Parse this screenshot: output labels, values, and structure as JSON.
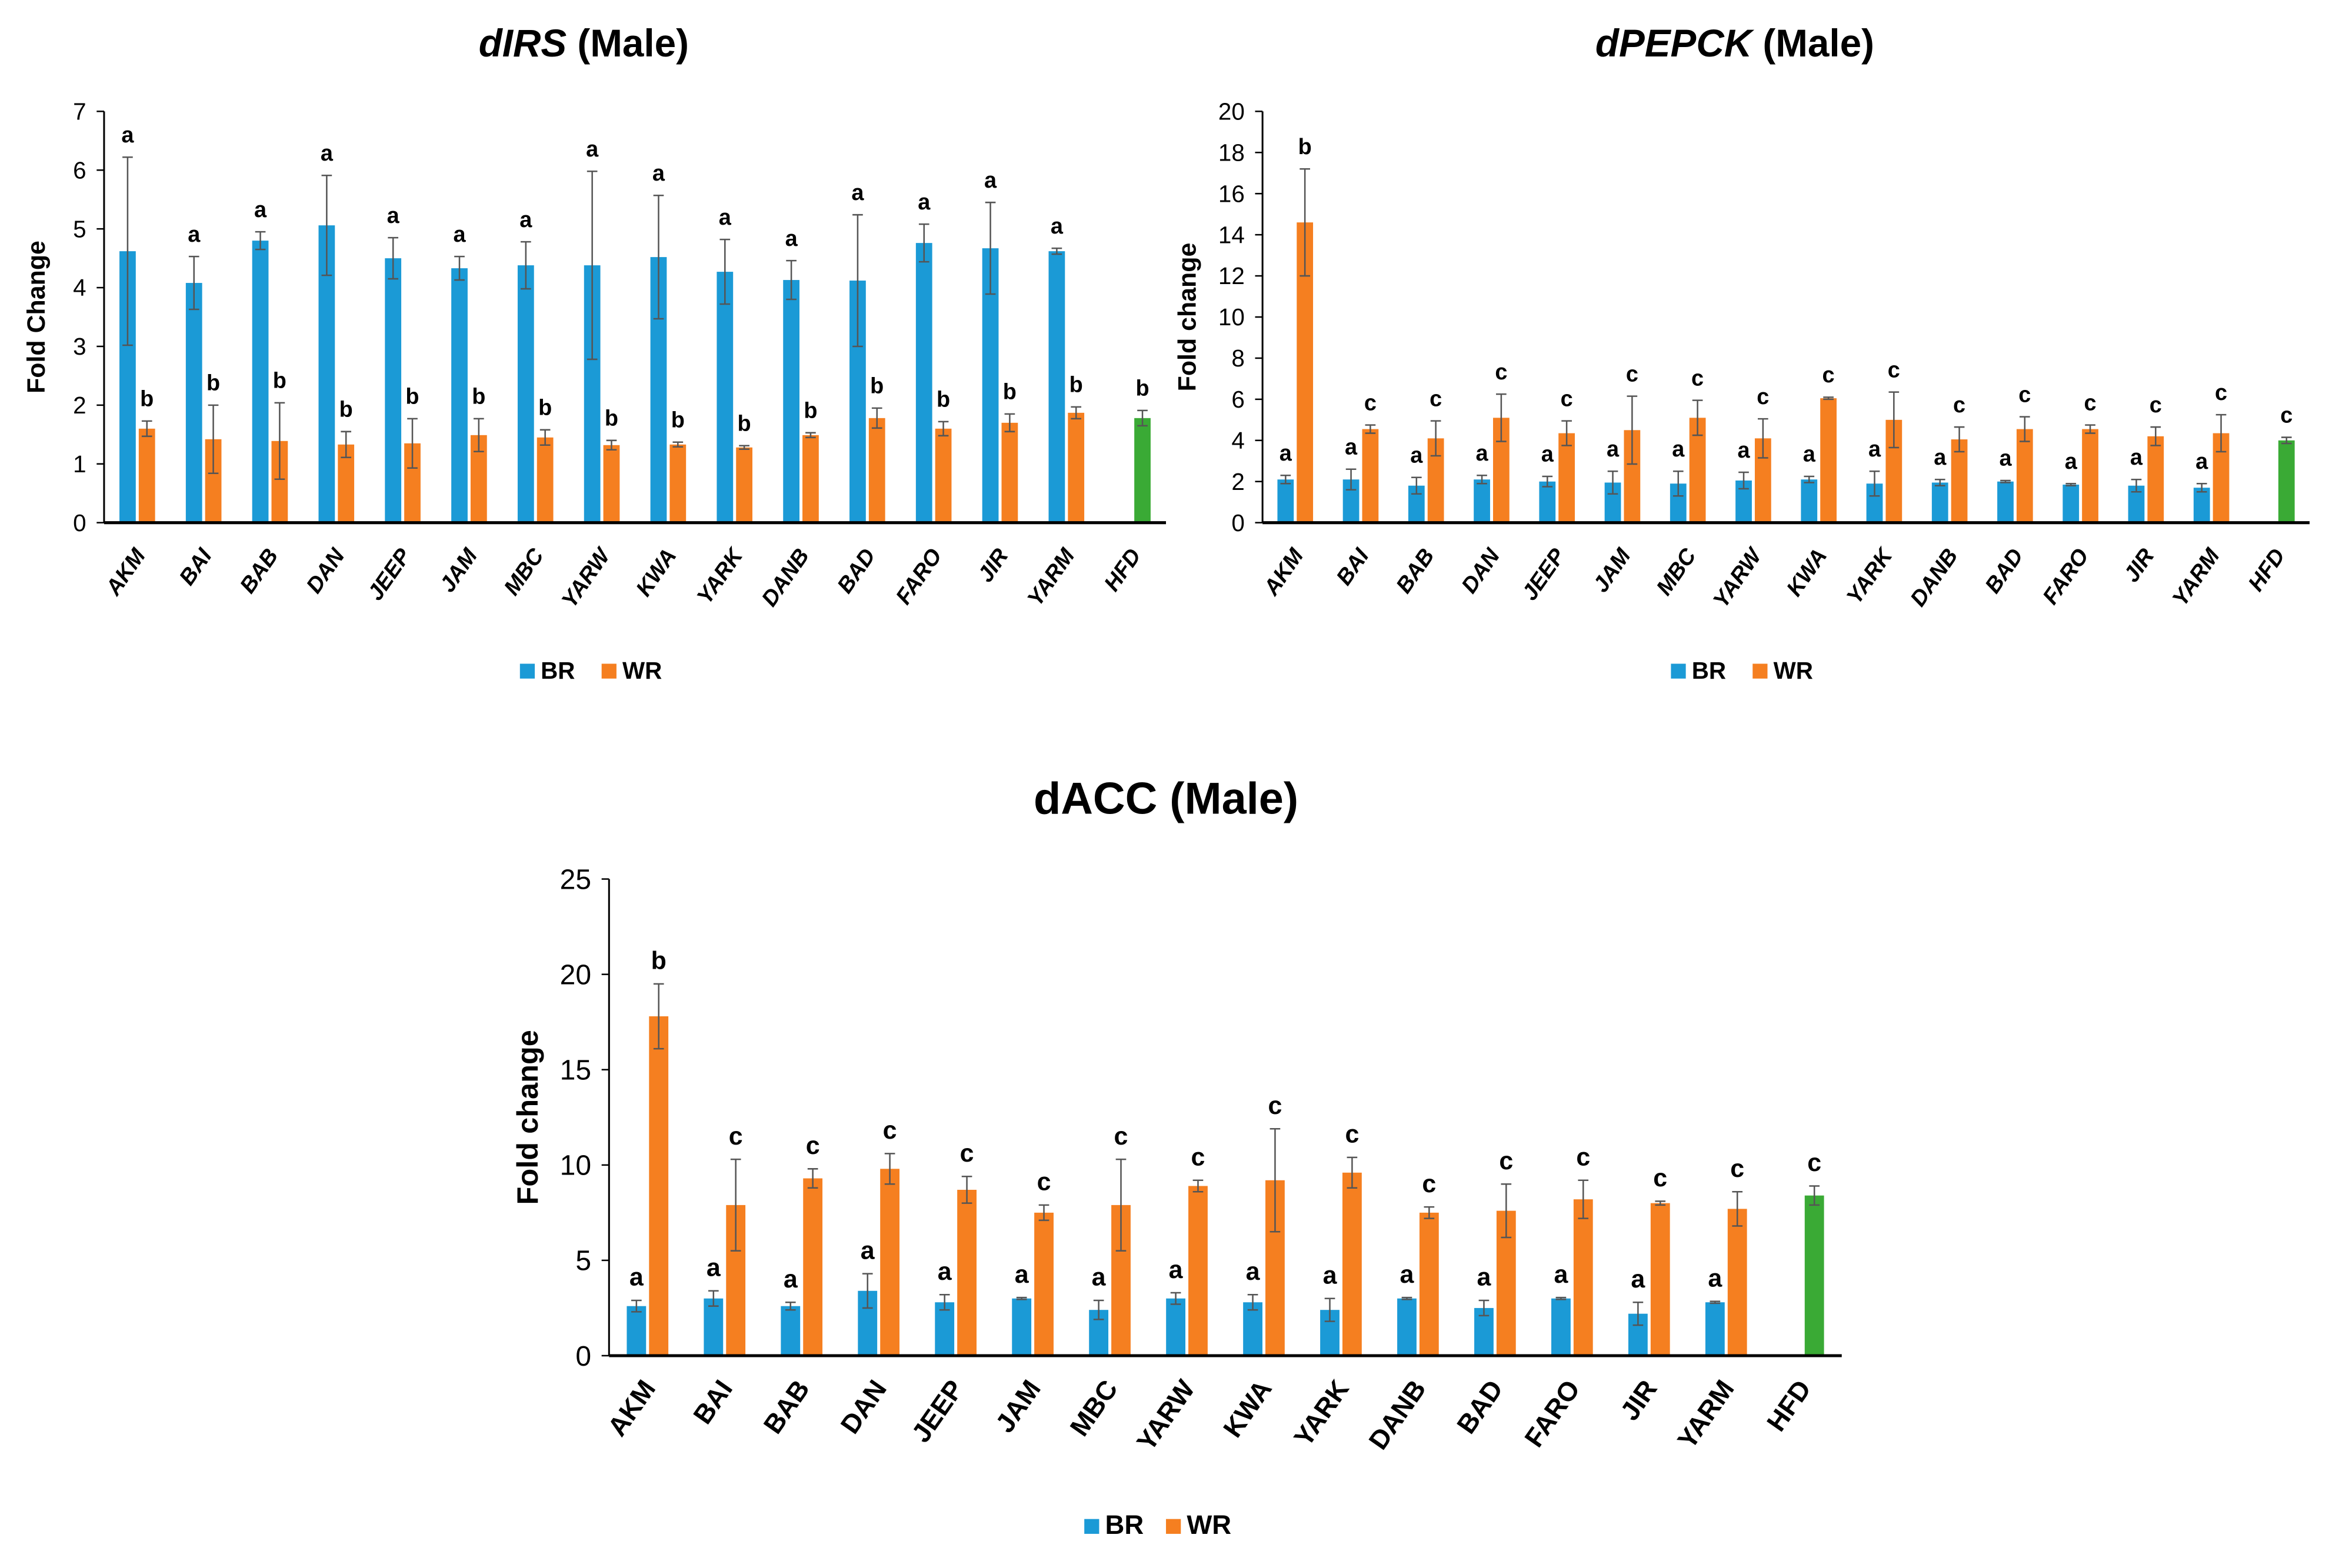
{
  "colors": {
    "BR": "#1b9ad6",
    "WR": "#f57f20",
    "HFD": "#3aaa35",
    "axis": "#000000",
    "error": "#555555"
  },
  "legend": [
    {
      "key": "BR",
      "label": "BR"
    },
    {
      "key": "WR",
      "label": "WR"
    }
  ],
  "chart_data": [
    {
      "type": "bar",
      "title_italic": "dIRS",
      "title_rest": " (Male)",
      "title_style": "italic",
      "ylabel": "Fold Change",
      "xlabel": "",
      "ylim": [
        0,
        7
      ],
      "yticks": [
        0,
        1,
        2,
        3,
        4,
        5,
        6,
        7
      ],
      "categories": [
        "AKM",
        "BAI",
        "BAB",
        "DAN",
        "JEEP",
        "JAM",
        "MBC",
        "YARW",
        "KWA",
        "YARK",
        "DANB",
        "BAD",
        "FARO",
        "JIR",
        "YARM",
        "HFD"
      ],
      "series": [
        {
          "name": "BR",
          "values": [
            4.62,
            4.08,
            4.8,
            5.06,
            4.5,
            4.33,
            4.38,
            4.38,
            4.52,
            4.27,
            4.13,
            4.12,
            4.76,
            4.67,
            4.62,
            null
          ],
          "errors": [
            1.6,
            0.45,
            0.15,
            0.85,
            0.35,
            0.2,
            0.4,
            1.6,
            1.05,
            0.55,
            0.33,
            1.12,
            0.32,
            0.78,
            0.05,
            null
          ],
          "letters": [
            "a",
            "a",
            "a",
            "a",
            "a",
            "a",
            "a",
            "a",
            "a",
            "a",
            "a",
            "a",
            "a",
            "a",
            "a",
            null
          ]
        },
        {
          "name": "WR",
          "values": [
            1.6,
            1.42,
            1.39,
            1.33,
            1.35,
            1.49,
            1.45,
            1.32,
            1.33,
            1.28,
            1.49,
            1.78,
            1.6,
            1.7,
            1.87,
            null
          ],
          "errors": [
            0.13,
            0.58,
            0.65,
            0.22,
            0.42,
            0.28,
            0.13,
            0.08,
            0.04,
            0.03,
            0.04,
            0.17,
            0.12,
            0.15,
            0.1,
            null
          ],
          "letters": [
            "b",
            "b",
            "b",
            "b",
            "b",
            "b",
            "b",
            "b",
            "b",
            "b",
            "b",
            "b",
            "b",
            "b",
            "b",
            null
          ]
        },
        {
          "name": "HFD",
          "values": [
            null,
            null,
            null,
            null,
            null,
            null,
            null,
            null,
            null,
            null,
            null,
            null,
            null,
            null,
            null,
            1.78
          ],
          "errors": [
            null,
            null,
            null,
            null,
            null,
            null,
            null,
            null,
            null,
            null,
            null,
            null,
            null,
            null,
            null,
            0.13
          ],
          "letters": [
            null,
            null,
            null,
            null,
            null,
            null,
            null,
            null,
            null,
            null,
            null,
            null,
            null,
            null,
            null,
            "b"
          ]
        }
      ],
      "legend_position": "bottom"
    },
    {
      "type": "bar",
      "title_italic": "dPEPCK",
      "title_rest": " (Male)",
      "title_style": "italic",
      "ylabel": "Fold change",
      "xlabel": "",
      "ylim": [
        0,
        20
      ],
      "yticks": [
        0,
        2,
        4,
        6,
        8,
        10,
        12,
        14,
        16,
        18,
        20
      ],
      "categories": [
        "AKM",
        "BAI",
        "BAB",
        "DAN",
        "JEEP",
        "JAM",
        "MBC",
        "YARW",
        "KWA",
        "YARK",
        "DANB",
        "BAD",
        "FARO",
        "JIR",
        "YARM",
        "HFD"
      ],
      "series": [
        {
          "name": "BR",
          "values": [
            2.1,
            2.1,
            1.8,
            2.1,
            2.0,
            1.95,
            1.9,
            2.05,
            2.1,
            1.9,
            1.95,
            2.0,
            1.85,
            1.8,
            1.7,
            null
          ],
          "errors": [
            0.2,
            0.5,
            0.4,
            0.2,
            0.25,
            0.55,
            0.6,
            0.4,
            0.15,
            0.6,
            0.15,
            0.05,
            0.05,
            0.3,
            0.2,
            null
          ],
          "letters": [
            "a",
            "a",
            "a",
            "a",
            "a",
            "a",
            "a",
            "a",
            "a",
            "a",
            "a",
            "a",
            "a",
            "a",
            "a",
            null
          ]
        },
        {
          "name": "WR",
          "values": [
            14.6,
            4.55,
            4.1,
            5.1,
            4.35,
            4.5,
            5.1,
            4.1,
            6.05,
            5.0,
            4.05,
            4.55,
            4.55,
            4.2,
            4.35,
            null
          ],
          "errors": [
            2.6,
            0.2,
            0.85,
            1.15,
            0.6,
            1.65,
            0.85,
            0.95,
            0.05,
            1.35,
            0.6,
            0.6,
            0.2,
            0.45,
            0.9,
            null
          ],
          "letters": [
            "b",
            "c",
            "c",
            "c",
            "c",
            "c",
            "c",
            "c",
            "c",
            "c",
            "c",
            "c",
            "c",
            "c",
            "c",
            null
          ]
        },
        {
          "name": "HFD",
          "values": [
            null,
            null,
            null,
            null,
            null,
            null,
            null,
            null,
            null,
            null,
            null,
            null,
            null,
            null,
            null,
            4.0
          ],
          "errors": [
            null,
            null,
            null,
            null,
            null,
            null,
            null,
            null,
            null,
            null,
            null,
            null,
            null,
            null,
            null,
            0.15
          ],
          "letters": [
            null,
            null,
            null,
            null,
            null,
            null,
            null,
            null,
            null,
            null,
            null,
            null,
            null,
            null,
            null,
            "c"
          ]
        }
      ],
      "legend_position": "bottom"
    },
    {
      "type": "bar",
      "title_italic": "",
      "title_rest": "dACC (Male)",
      "title_style": "normal",
      "ylabel": "Fold change",
      "xlabel": "",
      "ylim": [
        0,
        25
      ],
      "yticks": [
        0,
        5,
        10,
        15,
        20,
        25
      ],
      "categories": [
        "AKM",
        "BAI",
        "BAB",
        "DAN",
        "JEEP",
        "JAM",
        "MBC",
        "YARW",
        "KWA",
        "YARK",
        "DANB",
        "BAD",
        "FARO",
        "JIR",
        "YARM",
        "HFD"
      ],
      "series": [
        {
          "name": "BR",
          "values": [
            2.6,
            3.0,
            2.6,
            3.4,
            2.8,
            3.0,
            2.4,
            3.0,
            2.8,
            2.4,
            3.0,
            2.5,
            3.0,
            2.2,
            2.8,
            null
          ],
          "errors": [
            0.3,
            0.4,
            0.2,
            0.9,
            0.4,
            0.05,
            0.5,
            0.3,
            0.4,
            0.6,
            0.05,
            0.4,
            0.05,
            0.6,
            0.05,
            null
          ],
          "letters": [
            "a",
            "a",
            "a",
            "a",
            "a",
            "a",
            "a",
            "a",
            "a",
            "a",
            "a",
            "a",
            "a",
            "a",
            "a",
            null
          ]
        },
        {
          "name": "WR",
          "values": [
            17.8,
            7.9,
            9.3,
            9.8,
            8.7,
            7.5,
            7.9,
            8.9,
            9.2,
            9.6,
            7.5,
            7.6,
            8.2,
            8.0,
            7.7,
            null
          ],
          "errors": [
            1.7,
            2.4,
            0.5,
            0.8,
            0.7,
            0.4,
            2.4,
            0.3,
            2.7,
            0.8,
            0.3,
            1.4,
            1.0,
            0.1,
            0.9,
            null
          ],
          "letters": [
            "b",
            "c",
            "c",
            "c",
            "c",
            "c",
            "c",
            "c",
            "c",
            "c",
            "c",
            "c",
            "c",
            "c",
            "c",
            null
          ]
        },
        {
          "name": "HFD",
          "values": [
            null,
            null,
            null,
            null,
            null,
            null,
            null,
            null,
            null,
            null,
            null,
            null,
            null,
            null,
            null,
            8.4
          ],
          "errors": [
            null,
            null,
            null,
            null,
            null,
            null,
            null,
            null,
            null,
            null,
            null,
            null,
            null,
            null,
            null,
            0.5
          ],
          "letters": [
            null,
            null,
            null,
            null,
            null,
            null,
            null,
            null,
            null,
            null,
            null,
            null,
            null,
            null,
            null,
            "c"
          ]
        }
      ],
      "legend_position": "bottom"
    }
  ]
}
